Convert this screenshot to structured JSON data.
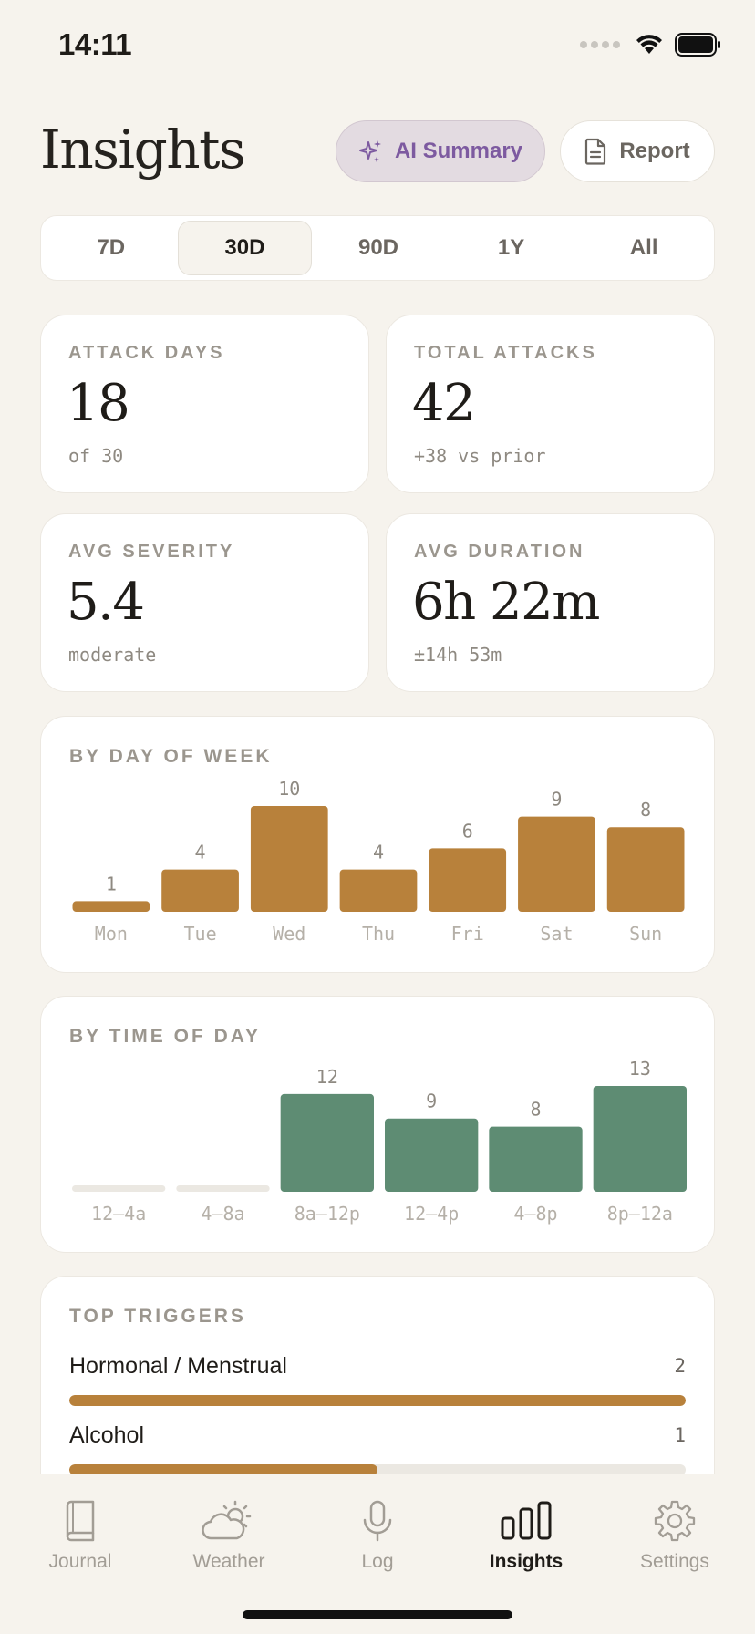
{
  "status": {
    "time": "14:11"
  },
  "header": {
    "title": "Insights",
    "ai_summary_label": "AI Summary",
    "report_label": "Report"
  },
  "range_tabs": [
    {
      "label": "7D",
      "active": false
    },
    {
      "label": "30D",
      "active": true
    },
    {
      "label": "90D",
      "active": false
    },
    {
      "label": "1Y",
      "active": false
    },
    {
      "label": "All",
      "active": false
    }
  ],
  "stats": {
    "attack_days": {
      "label": "ATTACK DAYS",
      "value": "18",
      "sub": "of 30"
    },
    "total_attacks": {
      "label": "TOTAL ATTACKS",
      "value": "42",
      "sub": "+38 vs prior"
    },
    "avg_severity": {
      "label": "AVG SEVERITY",
      "value": "5.4",
      "sub": "moderate"
    },
    "avg_duration": {
      "label": "AVG DURATION",
      "value": "6h 22m",
      "sub": "±14h 53m"
    }
  },
  "chart_data": [
    {
      "type": "bar",
      "title": "BY DAY OF WEEK",
      "categories": [
        "Mon",
        "Tue",
        "Wed",
        "Thu",
        "Fri",
        "Sat",
        "Sun"
      ],
      "values": [
        1,
        4,
        10,
        4,
        6,
        9,
        8
      ],
      "color": "#b8813b"
    },
    {
      "type": "bar",
      "title": "BY TIME OF DAY",
      "categories": [
        "12–4a",
        "4–8a",
        "8a–12p",
        "12–4p",
        "4–8p",
        "8p–12a"
      ],
      "values": [
        0,
        0,
        12,
        9,
        8,
        13
      ],
      "color": "#5e8c73"
    }
  ],
  "triggers": {
    "title": "TOP TRIGGERS",
    "items": [
      {
        "label": "Hormonal / Menstrual",
        "count": "2",
        "fraction": 1.0
      },
      {
        "label": "Alcohol",
        "count": "1",
        "fraction": 0.5
      }
    ]
  },
  "tab_bar": {
    "items": [
      {
        "label": "Journal",
        "icon": "book-icon",
        "active": false
      },
      {
        "label": "Weather",
        "icon": "weather-icon",
        "active": false
      },
      {
        "label": "Log",
        "icon": "microphone-icon",
        "active": false
      },
      {
        "label": "Insights",
        "icon": "bar-chart-icon",
        "active": true
      },
      {
        "label": "Settings",
        "icon": "gear-icon",
        "active": false
      }
    ]
  },
  "colors": {
    "accent": "#b8813b",
    "green": "#5e8c73",
    "ai_purple": "#7d5aa0",
    "background": "#f6f3ed"
  }
}
